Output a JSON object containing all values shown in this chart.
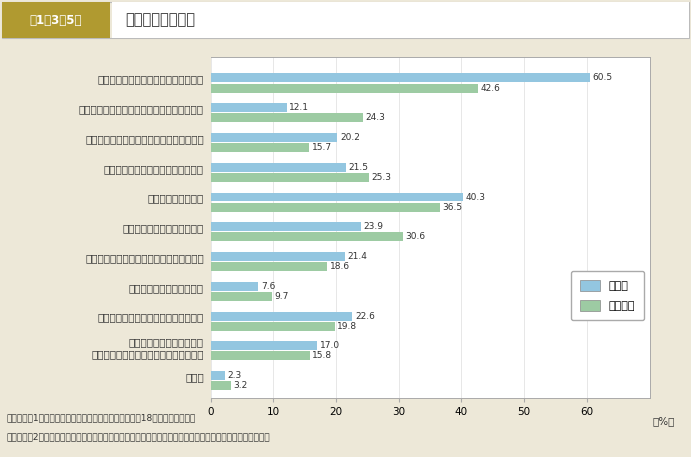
{
  "title_box_text": "第1－3－5図",
  "title_main_text": "自己啓発の問題点",
  "categories": [
    "仕事が忙しくて自己啓発の余裕がない",
    "家事・育児が忙しくて自己啓発の余裕がない",
    "休暇取得・早退等が会社の都合でできない",
    "適当な教育訓練機関が見つからない",
    "費用がかかりすぎる",
    "セミナー等の情報が得にくい",
    "コース受講や資格取得の効果が定かでない",
    "やるべきことがわからない",
    "自己啓発の結果が社内で評価されない",
    "どのようなコースが自分の\n目指すキャリアに適切なのかわからない",
    "その他"
  ],
  "seishain": [
    60.5,
    12.1,
    20.2,
    21.5,
    40.3,
    23.9,
    21.4,
    7.6,
    22.6,
    17.0,
    2.3
  ],
  "hiseishain": [
    42.6,
    24.3,
    15.7,
    25.3,
    36.5,
    30.6,
    18.6,
    9.7,
    19.8,
    15.8,
    3.2
  ],
  "color_seishain": "#93c6e0",
  "color_hiseishain": "#9dcba3",
  "xlim_max": 70,
  "xticks": [
    0,
    10,
    20,
    30,
    40,
    50,
    60
  ],
  "xlabel": "（%）",
  "footnote1": "（備考）　1．厚生労働省「能力開発基本調査」（平成18年度）より作成。",
  "footnote2": "　　　　　2．自己啓発に問題があると回答した労働者に対して，自己啓発の問題点を聞いた（複数回答）。",
  "legend_seishain": "正社員",
  "legend_hiseishain": "非正社員",
  "bg_color": "#ede8d8",
  "plot_bg_color": "#ffffff",
  "title_box_bg": "#b09a30",
  "title_box_text_color": "#ffffff",
  "title_main_bg": "#ffffff",
  "border_color": "#cccccc",
  "text_color": "#333333",
  "grid_color": "#dddddd",
  "value_fontsize": 6.5,
  "ylabel_fontsize": 7.5,
  "xtick_fontsize": 7.5,
  "legend_fontsize": 8.0,
  "footnote_fontsize": 6.5
}
